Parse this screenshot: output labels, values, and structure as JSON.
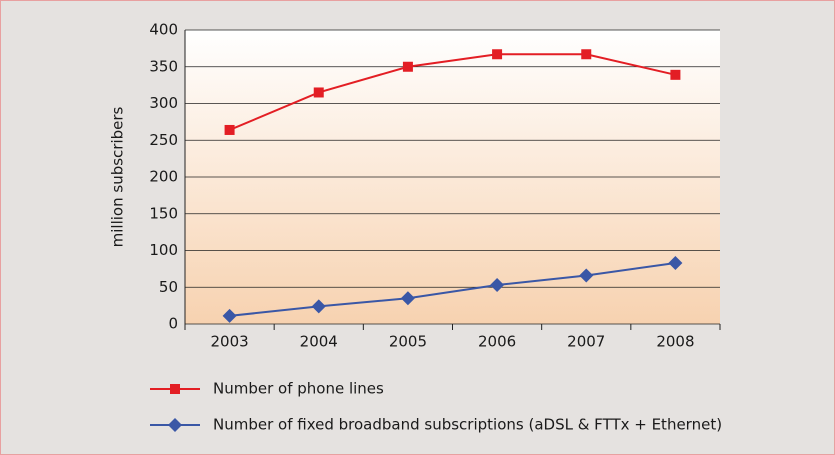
{
  "chart_data": {
    "type": "line",
    "categories": [
      "2003",
      "2004",
      "2005",
      "2006",
      "2007",
      "2008"
    ],
    "series": [
      {
        "name": "Number of phone lines",
        "color": "#e31e24",
        "marker": "square",
        "values": [
          264,
          315,
          350,
          367,
          367,
          339
        ]
      },
      {
        "name": "Number of fixed broadband subscriptions (aDSL & FTTx + Ethernet)",
        "color": "#3a57a6",
        "marker": "diamond",
        "values": [
          11,
          24,
          35,
          53,
          66,
          83
        ]
      }
    ],
    "y_label": "million subscribers",
    "ylim": [
      0,
      400
    ],
    "yticks": [
      0,
      50,
      100,
      150,
      200,
      250,
      300,
      350,
      400
    ],
    "grid": true,
    "legend": "bottom-left"
  }
}
